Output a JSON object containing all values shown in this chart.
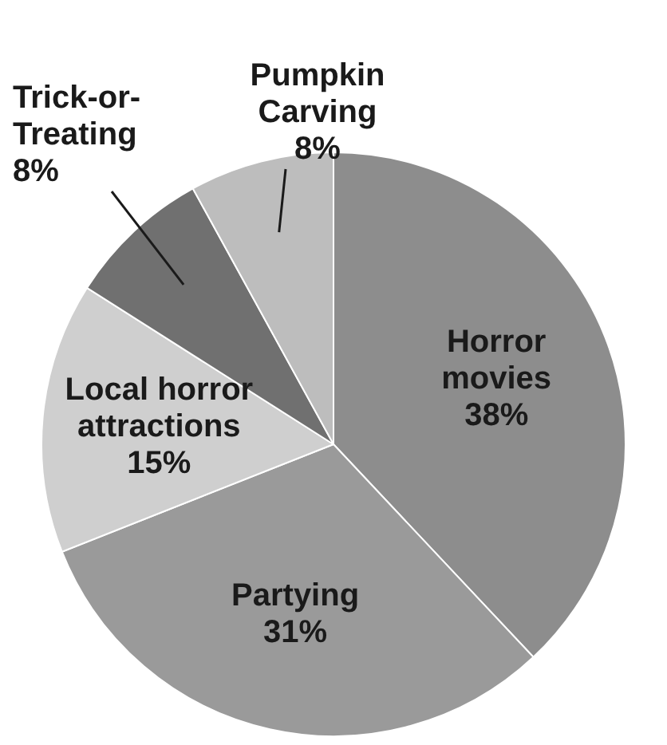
{
  "chart_data": {
    "type": "pie",
    "categories": [
      "Horror movies",
      "Partying",
      "Local horror attractions",
      "Trick-or-Treating",
      "Pumpkin Carving"
    ],
    "values": [
      38,
      31,
      15,
      8,
      8
    ],
    "colors": [
      "#8d8d8d",
      "#9a9a9a",
      "#cfcfcf",
      "#707070",
      "#bdbdbd"
    ],
    "value_labels": [
      "38%",
      "31%",
      "15%",
      "8%",
      "8%"
    ],
    "legend": false
  }
}
